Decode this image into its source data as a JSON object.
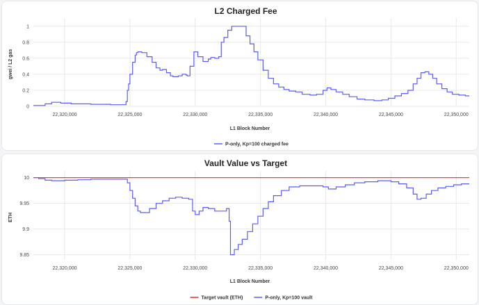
{
  "chart_data": [
    {
      "id": "fee",
      "type": "line",
      "title": "L2 Charged Fee",
      "xlabel": "L1 Block Number",
      "ylabel": "gwei / L2 gas",
      "xlim": [
        22317600,
        22351000
      ],
      "ylim": [
        0,
        1.05
      ],
      "xticks": [
        22320000,
        22325000,
        22330000,
        22335000,
        22340000,
        22345000,
        22350000
      ],
      "xtick_labels": [
        "22,320,000",
        "22,325,000",
        "22,330,000",
        "22,335,000",
        "22,340,000",
        "22,345,000",
        "22,350,000"
      ],
      "yticks": [
        0,
        0.2,
        0.4,
        0.6,
        0.8,
        1
      ],
      "ytick_labels": [
        "0",
        "0.2",
        "0.4",
        "0.6",
        "0.8",
        "1"
      ],
      "grid": true,
      "legend_position": "bottom",
      "series": [
        {
          "name": "P-only, Kp=100 charged fee",
          "color": "#5b5bf5",
          "step": true,
          "x": [
            22317600,
            22318500,
            22319000,
            22319700,
            22320500,
            22322000,
            22323500,
            22324500,
            22324700,
            22324800,
            22324900,
            22325000,
            22325200,
            22325400,
            22325500,
            22325600,
            22325900,
            22326300,
            22326700,
            22327000,
            22327300,
            22327500,
            22327800,
            22328100,
            22328300,
            22328500,
            22328700,
            22329000,
            22329300,
            22329400,
            22329600,
            22329900,
            22330200,
            22330600,
            22331000,
            22331200,
            22331500,
            22331800,
            22332000,
            22332200,
            22332500,
            22332800,
            22333400,
            22333900,
            22334200,
            22334500,
            22334800,
            22335200,
            22335600,
            22336000,
            22336400,
            22336800,
            22337200,
            22337700,
            22338200,
            22338800,
            22339300,
            22339800,
            22340100,
            22340400,
            22340800,
            22341300,
            22341800,
            22342400,
            22343000,
            22343700,
            22344300,
            22344800,
            22345300,
            22345800,
            22346300,
            22346700,
            22347000,
            22347300,
            22347600,
            22347900,
            22348200,
            22348500,
            22348900,
            22349300,
            22349700,
            22350200,
            22350700,
            22351000
          ],
          "y": [
            0.01,
            0.03,
            0.05,
            0.04,
            0.03,
            0.025,
            0.02,
            0.02,
            0.06,
            0.2,
            0.28,
            0.4,
            0.55,
            0.64,
            0.67,
            0.68,
            0.67,
            0.62,
            0.55,
            0.48,
            0.45,
            0.46,
            0.42,
            0.38,
            0.37,
            0.37,
            0.38,
            0.4,
            0.39,
            0.38,
            0.5,
            0.68,
            0.62,
            0.56,
            0.59,
            0.61,
            0.6,
            0.62,
            0.8,
            0.86,
            0.95,
            1.0,
            1.0,
            0.88,
            0.78,
            0.68,
            0.58,
            0.45,
            0.35,
            0.28,
            0.24,
            0.21,
            0.19,
            0.18,
            0.15,
            0.14,
            0.15,
            0.2,
            0.23,
            0.21,
            0.18,
            0.15,
            0.12,
            0.09,
            0.08,
            0.07,
            0.08,
            0.1,
            0.13,
            0.16,
            0.2,
            0.28,
            0.35,
            0.42,
            0.43,
            0.4,
            0.35,
            0.28,
            0.22,
            0.18,
            0.15,
            0.14,
            0.13,
            0.13
          ]
        }
      ]
    },
    {
      "id": "vault",
      "type": "line",
      "title": "Vault Value vs Target",
      "xlabel": "L1 Block Number",
      "ylabel": "ETH",
      "xlim": [
        22317600,
        22351000
      ],
      "ylim": [
        9.84,
        10.005
      ],
      "xticks": [
        22320000,
        22325000,
        22330000,
        22335000,
        22340000,
        22345000,
        22350000
      ],
      "xtick_labels": [
        "22,320,000",
        "22,325,000",
        "22,330,000",
        "22,335,000",
        "22,340,000",
        "22,345,000",
        "22,350,000"
      ],
      "yticks": [
        9.85,
        9.9,
        9.95,
        10
      ],
      "ytick_labels": [
        "9.85",
        "9.9",
        "9.95",
        "10"
      ],
      "grid": true,
      "legend_position": "bottom",
      "series": [
        {
          "name": "Target vault (ETH)",
          "color": "#e03030",
          "step": false,
          "x": [
            22317600,
            22351000
          ],
          "y": [
            10,
            10
          ]
        },
        {
          "name": "P-only, Kp=100 vault",
          "color": "#5b5bf5",
          "step": true,
          "x": [
            22317600,
            22318000,
            22318500,
            22319000,
            22320000,
            22321000,
            22322000,
            22323000,
            22324000,
            22324800,
            22325000,
            22325200,
            22325400,
            22325600,
            22325800,
            22326000,
            22326500,
            22327000,
            22327500,
            22328000,
            22328500,
            22329000,
            22329500,
            22329800,
            22330000,
            22330300,
            22330600,
            22331000,
            22331500,
            22332000,
            22332400,
            22332600,
            22332700,
            22333000,
            22333300,
            22333600,
            22334000,
            22334400,
            22334800,
            22335200,
            22335600,
            22336000,
            22336600,
            22337200,
            22338000,
            22339000,
            22339800,
            22340200,
            22340800,
            22341500,
            22342200,
            22343000,
            22344000,
            22345000,
            22345600,
            22346200,
            22346700,
            22347000,
            22347300,
            22347700,
            22348100,
            22348600,
            22349200,
            22349800,
            22350400,
            22351000
          ],
          "y": [
            10.0,
            9.998,
            9.995,
            9.994,
            9.995,
            9.996,
            9.997,
            9.997,
            9.997,
            9.99,
            9.975,
            9.96,
            9.945,
            9.935,
            9.932,
            9.932,
            9.94,
            9.95,
            9.955,
            9.96,
            9.962,
            9.96,
            9.958,
            9.935,
            9.928,
            9.935,
            9.942,
            9.94,
            9.935,
            9.935,
            9.94,
            9.915,
            9.85,
            9.86,
            9.87,
            9.88,
            9.895,
            9.91,
            9.925,
            9.94,
            9.953,
            9.965,
            9.975,
            9.982,
            9.984,
            9.984,
            9.982,
            9.978,
            9.982,
            9.986,
            9.99,
            9.992,
            9.994,
            9.992,
            9.988,
            9.98,
            9.968,
            9.958,
            9.96,
            9.968,
            9.975,
            9.98,
            9.983,
            9.986,
            9.988,
            9.988
          ]
        }
      ]
    }
  ]
}
